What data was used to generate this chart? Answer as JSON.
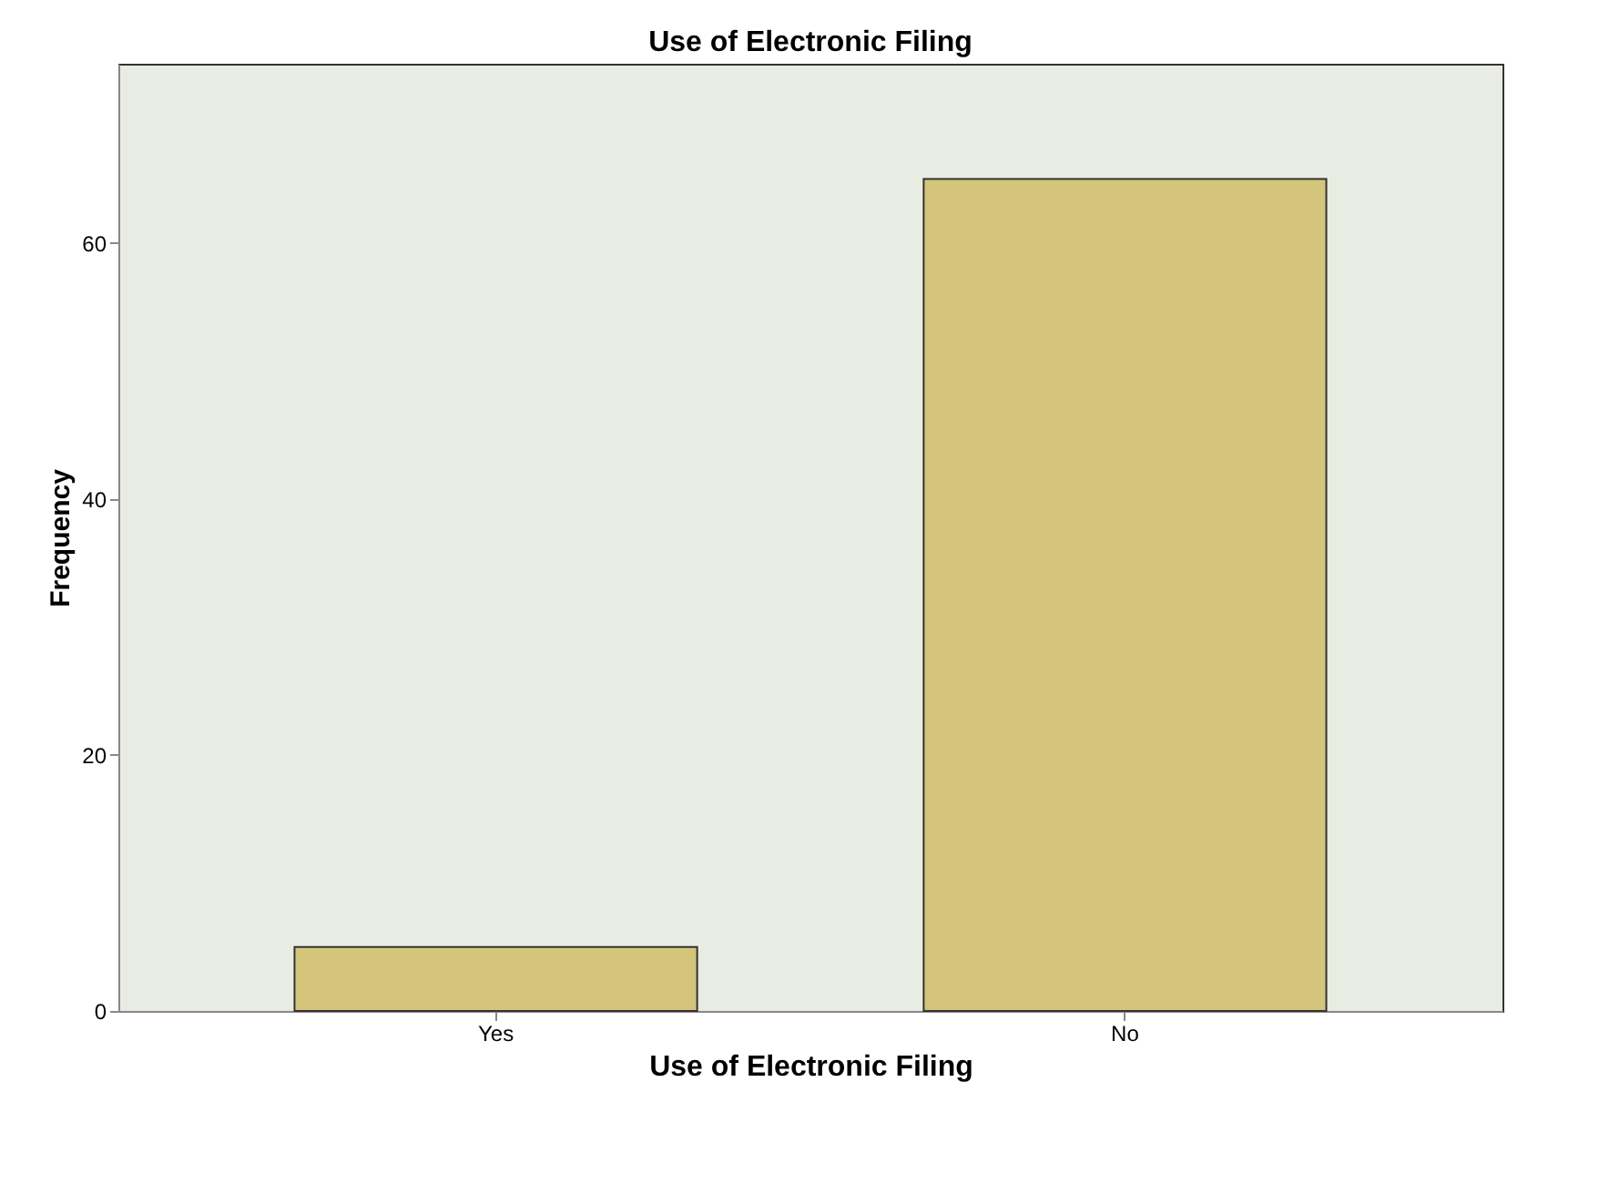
{
  "chart_data": {
    "type": "bar",
    "title": "Use of Electronic Filing",
    "xlabel": "Use of Electronic Filing",
    "ylabel": "Frequency",
    "categories": [
      "Yes",
      "No"
    ],
    "values": [
      5,
      65
    ],
    "color": "#d4c47c",
    "ylim": [
      0,
      74
    ],
    "yticks": [
      0,
      20,
      40,
      60
    ],
    "grid": false
  }
}
